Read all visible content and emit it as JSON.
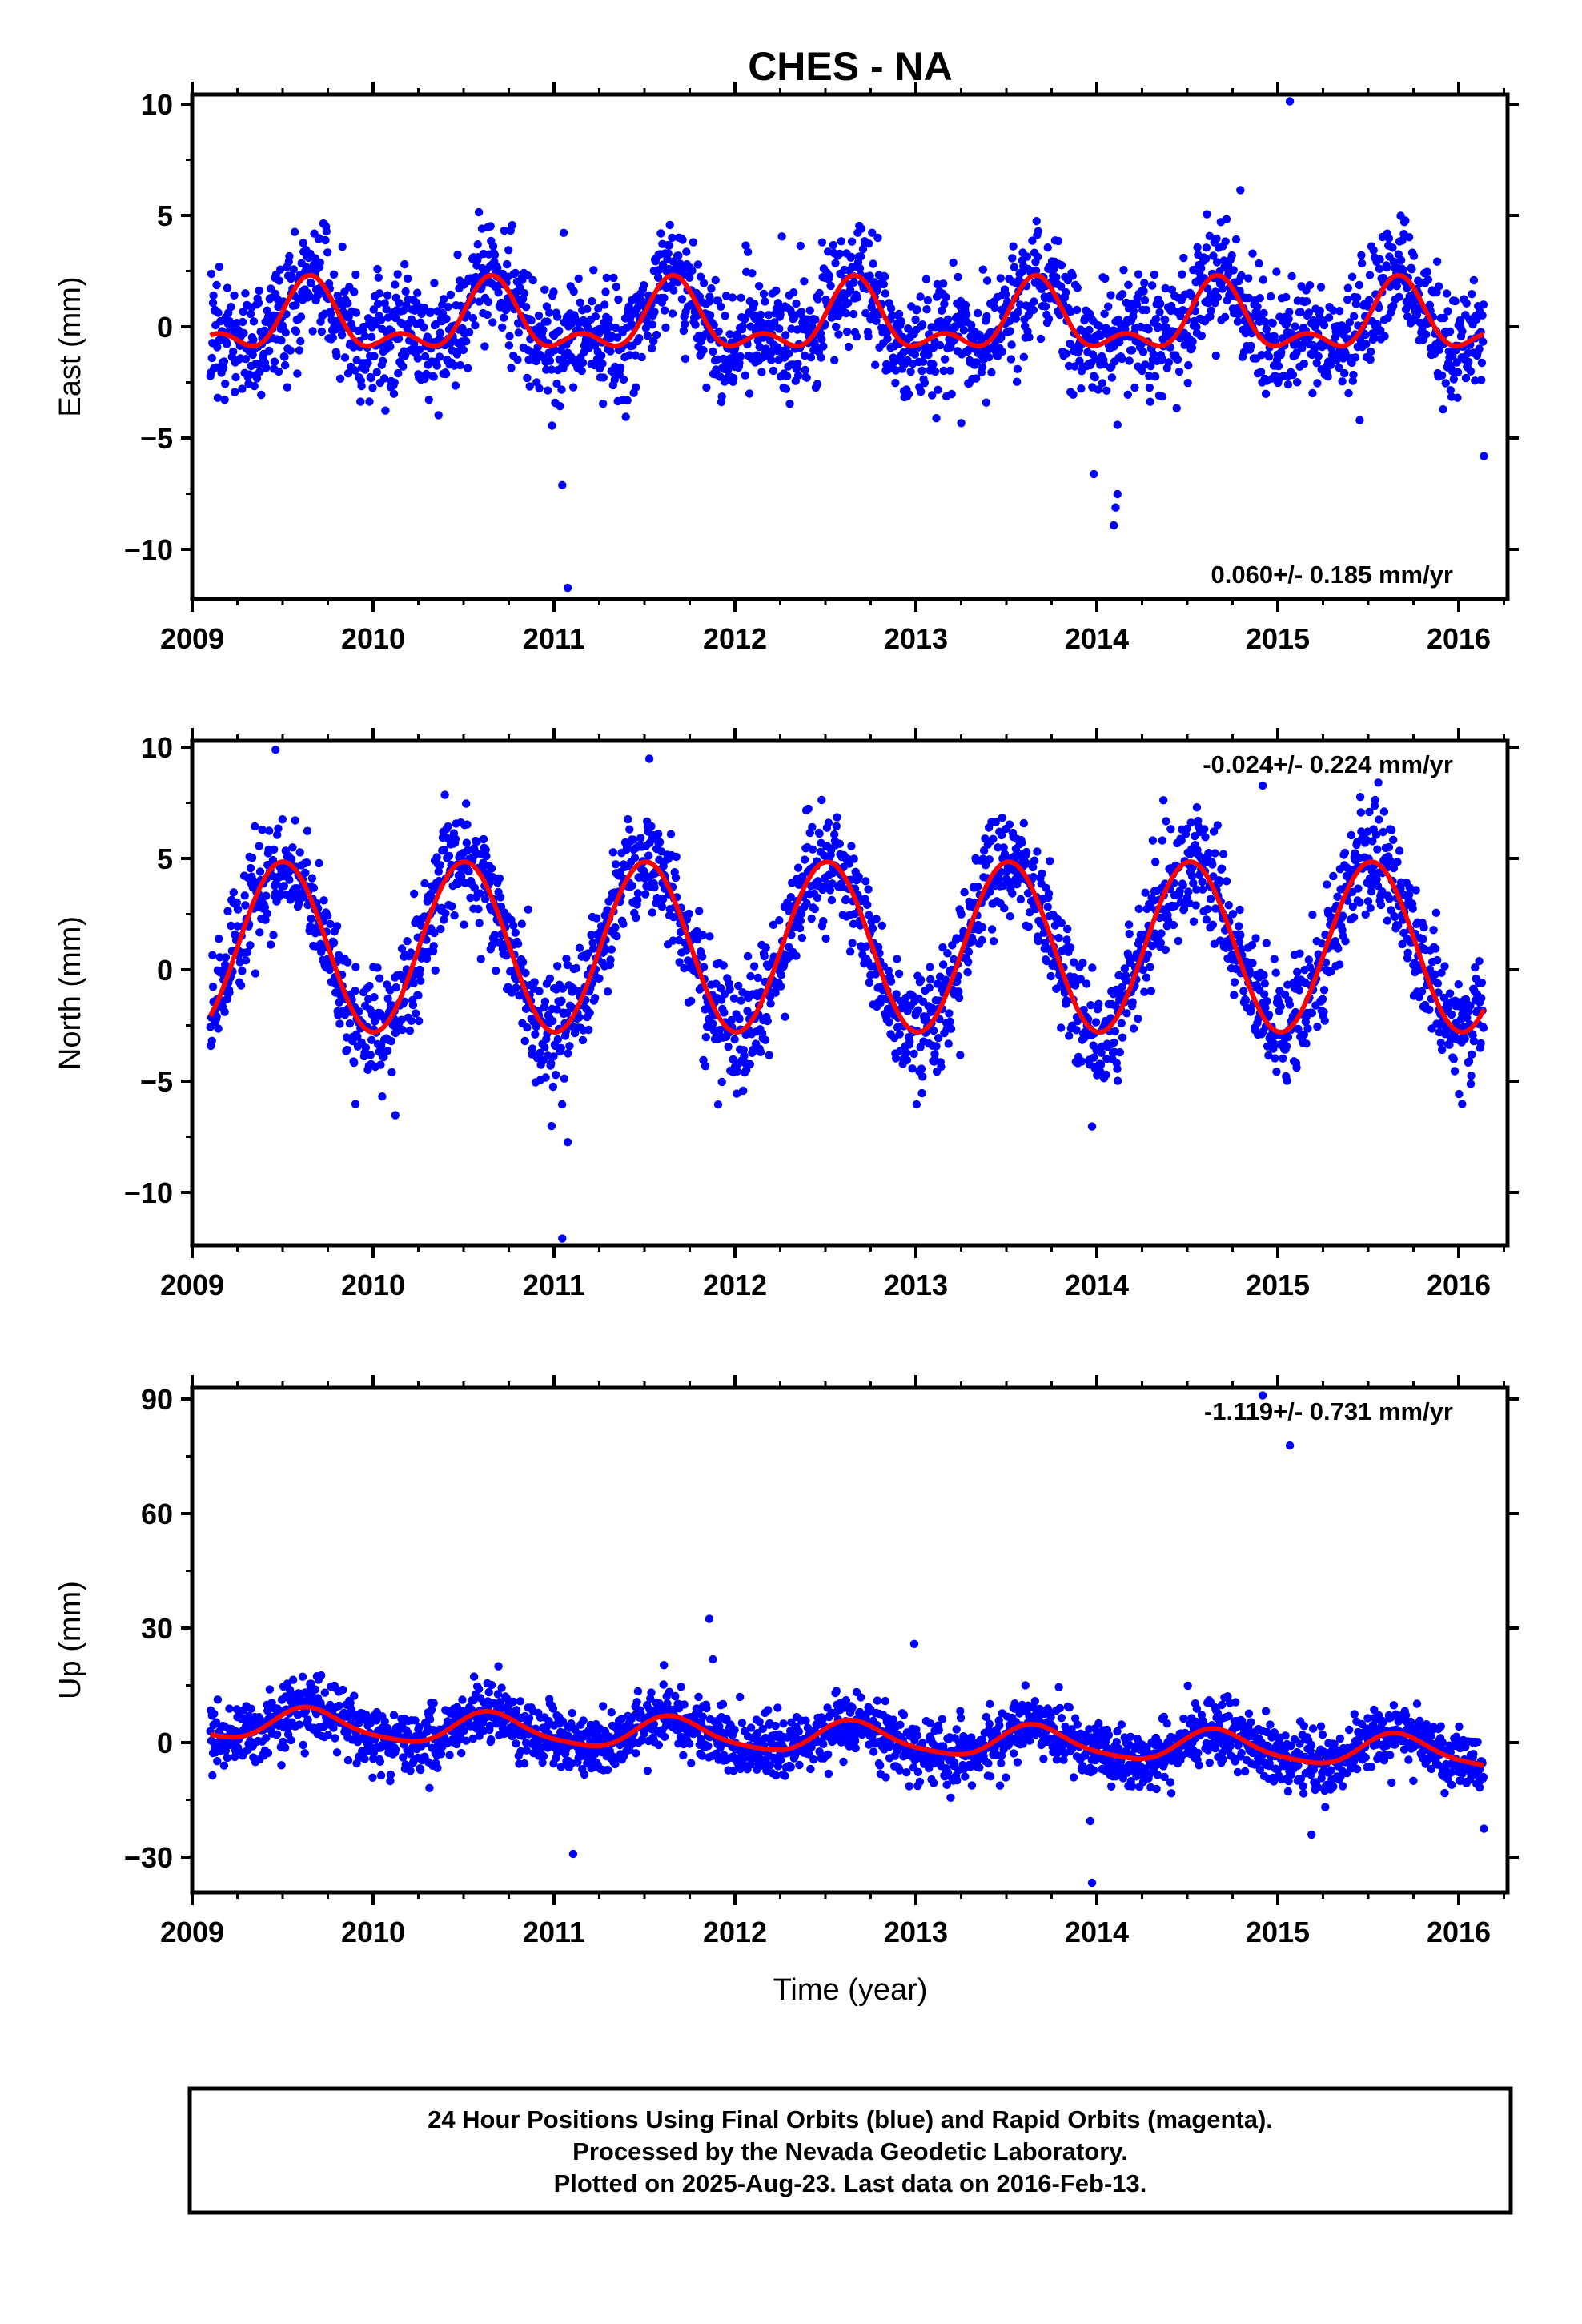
{
  "chart_data": {
    "type": "scatter",
    "title": "CHES - NA",
    "xlabel": "Time (year)",
    "xlim": [
      2009.0,
      2016.25
    ],
    "x_ticks": [
      "2009",
      "2010",
      "2011",
      "2012",
      "2013",
      "2014",
      "2015",
      "2016"
    ],
    "series_colors": {
      "final_orbits": "#0000ff",
      "model_fit": "#ff0000"
    },
    "panels": [
      {
        "name": "east",
        "ylabel": "East (mm)",
        "ylim": [
          -12.3,
          10.3
        ],
        "y_ticks": [
          "10",
          "5",
          "0",
          "−5",
          "−10"
        ],
        "rate_label": "0.060+/- 0.185 mm/yr",
        "rate_position": "bottom-right",
        "fit": {
          "mean": 0.1,
          "annual_amp": 1.3,
          "annual_peak": 0.65,
          "semi_amp": 0.8,
          "semi_phase": 0.15
        },
        "scatter_sigma": 1.3,
        "outliers": [
          [
            2011.04,
            -7.2
          ],
          [
            2011.07,
            -11.8
          ],
          [
            2014.08,
            -9.0
          ],
          [
            2014.09,
            -8.2
          ],
          [
            2014.1,
            -7.6
          ],
          [
            2013.97,
            -6.7
          ],
          [
            2015.05,
            10.0
          ],
          [
            2016.12,
            -5.9
          ],
          [
            2014.1,
            -4.5
          ]
        ]
      },
      {
        "name": "north",
        "ylabel": "North (mm)",
        "ylim": [
          -12.5,
          10.0
        ],
        "y_ticks": [
          "10",
          "5",
          "0",
          "−5",
          "−10"
        ],
        "rate_label": "-0.024+/- 0.224 mm/yr",
        "rate_position": "top-right",
        "fit": {
          "mean": 0.8,
          "annual_amp": 3.8,
          "annual_peak": 0.5,
          "semi_amp": 0.0,
          "semi_phase": 0.0
        },
        "scatter_sigma": 1.25,
        "outliers": [
          [
            2009.46,
            9.6
          ],
          [
            2011.52,
            9.2
          ],
          [
            2014.9,
            8.0
          ],
          [
            2011.07,
            -7.9
          ],
          [
            2011.04,
            -12.2
          ],
          [
            2009.9,
            -6.2
          ],
          [
            2010.12,
            -6.7
          ],
          [
            2013.96,
            -7.2
          ],
          [
            2016.0,
            -6.2
          ]
        ]
      },
      {
        "name": "up",
        "ylabel": "Up (mm)",
        "ylim": [
          -39,
          92
        ],
        "y_ticks": [
          "90",
          "60",
          "30",
          "0",
          "−30"
        ],
        "rate_label": "-1.119+/- 0.731 mm/yr",
        "rate_position": "top-right",
        "fit": {
          "mean": 1.2,
          "annual_amp": 4.0,
          "annual_peak": 0.65,
          "semi_amp": 0.8,
          "semi_phase": 0.1,
          "trend": -1.119
        },
        "scatter_sigma": 4.0,
        "outliers": [
          [
            2014.9,
            90.0
          ],
          [
            2015.05,
            77.0
          ],
          [
            2011.85,
            32.0
          ],
          [
            2011.87,
            21.5
          ],
          [
            2012.98,
            25.5
          ],
          [
            2011.6,
            20.0
          ],
          [
            2011.1,
            -29.0
          ],
          [
            2013.96,
            -36.5
          ],
          [
            2016.12,
            -22.5
          ],
          [
            2013.95,
            -20.5
          ],
          [
            2015.17,
            -24.0
          ]
        ]
      }
    ],
    "data_span": [
      2009.1,
      2016.12
    ],
    "note_series": "24 Hour Positions Using Final Orbits (blue) and Rapid Orbits (magenta)."
  },
  "footer": {
    "line1": "24 Hour Positions Using Final Orbits (blue) and Rapid Orbits (magenta).",
    "line2": "Processed by the Nevada Geodetic Laboratory.",
    "line3": "Plotted on 2025-Aug-23. Last data on 2016-Feb-13."
  }
}
